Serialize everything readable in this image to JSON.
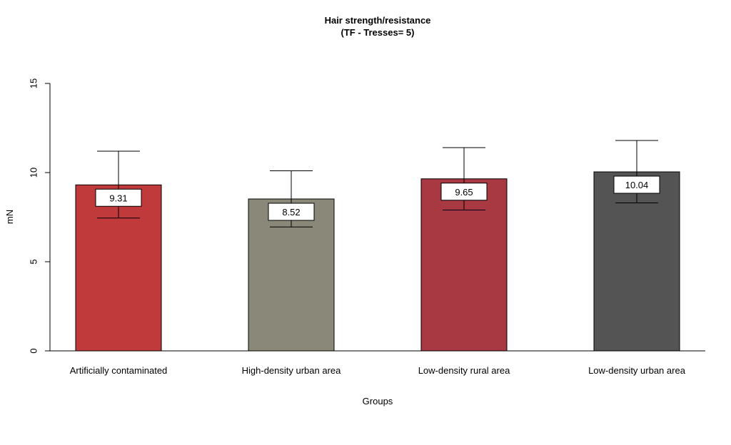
{
  "chart_data": {
    "type": "bar",
    "title": "Hair strength/resistance",
    "subtitle": "(TF - Tresses= 5)",
    "xlabel": "Groups",
    "ylabel": "mN",
    "ylim": [
      0,
      15
    ],
    "yticks": [
      0,
      5,
      10,
      15
    ],
    "grid": false,
    "categories": [
      "Artificially contaminated",
      "High-density urban area",
      "Low-density rural area",
      "Low-density urban area"
    ],
    "values": [
      9.31,
      8.52,
      9.65,
      10.04
    ],
    "error_low": [
      7.45,
      6.95,
      7.9,
      8.3
    ],
    "error_high": [
      11.2,
      10.1,
      11.4,
      11.8
    ],
    "value_labels": [
      "9.31",
      "8.52",
      "9.65",
      "10.04"
    ],
    "colors": [
      "#c0393b",
      "#8a8878",
      "#a83842",
      "#545454"
    ]
  }
}
